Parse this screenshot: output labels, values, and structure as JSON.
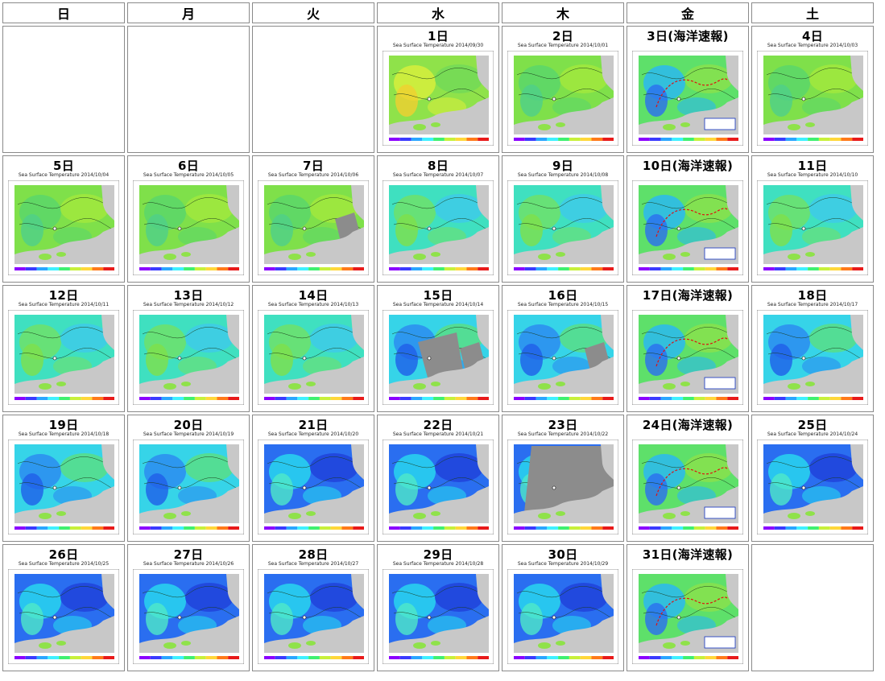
{
  "weekdays": [
    "日",
    "月",
    "火",
    "水",
    "木",
    "金",
    "土"
  ],
  "colors": {
    "land": "#c8c8c8",
    "cloud": "#8c8c8c",
    "coast_warm": "#8fe64a",
    "legend_bar": [
      "#8b00ff",
      "#3a3aff",
      "#2aa6ff",
      "#3ff0ff",
      "#3ff070",
      "#c8f03a",
      "#ffd73a",
      "#ff7a1a",
      "#e81a1a"
    ],
    "route": "#e01010"
  },
  "cells": [
    {
      "empty": true
    },
    {
      "empty": true
    },
    {
      "empty": true
    },
    {
      "day": "1日",
      "map_title": "Sea Surface Temperature 2014/09/30",
      "palette": "warm",
      "cloud": 0
    },
    {
      "day": "2日",
      "map_title": "Sea Surface Temperature 2014/10/01",
      "palette": "green",
      "cloud": 0
    },
    {
      "day": "3日(海洋速報)",
      "map_title": "",
      "palette": "quick",
      "cloud": 0
    },
    {
      "day": "4日",
      "map_title": "Sea Surface Temperature 2014/10/03",
      "palette": "green",
      "cloud": 0
    },
    {
      "day": "5日",
      "map_title": "Sea Surface Temperature 2014/10/04",
      "palette": "green",
      "cloud": 0
    },
    {
      "day": "6日",
      "map_title": "Sea Surface Temperature 2014/10/05",
      "palette": "green",
      "cloud": 0
    },
    {
      "day": "7日",
      "map_title": "Sea Surface Temperature 2014/10/06",
      "palette": "green",
      "cloud": 1
    },
    {
      "day": "8日",
      "map_title": "Sea Surface Temperature 2014/10/07",
      "palette": "cool",
      "cloud": 0
    },
    {
      "day": "9日",
      "map_title": "Sea Surface Temperature 2014/10/08",
      "palette": "cool",
      "cloud": 0
    },
    {
      "day": "10日(海洋速報)",
      "map_title": "",
      "palette": "quick",
      "cloud": 0
    },
    {
      "day": "11日",
      "map_title": "Sea Surface Temperature 2014/10/10",
      "palette": "cool",
      "cloud": 0
    },
    {
      "day": "12日",
      "map_title": "Sea Surface Temperature 2014/10/11",
      "palette": "cool",
      "cloud": 0
    },
    {
      "day": "13日",
      "map_title": "Sea Surface Temperature 2014/10/12",
      "palette": "cool",
      "cloud": 0
    },
    {
      "day": "14日",
      "map_title": "Sea Surface Temperature 2014/10/13",
      "palette": "cool",
      "cloud": 0
    },
    {
      "day": "15日",
      "map_title": "Sea Surface Temperature 2014/10/14",
      "palette": "blue",
      "cloud": 2
    },
    {
      "day": "16日",
      "map_title": "Sea Surface Temperature 2014/10/15",
      "palette": "blue",
      "cloud": 1
    },
    {
      "day": "17日(海洋速報)",
      "map_title": "",
      "palette": "quick",
      "cloud": 0
    },
    {
      "day": "18日",
      "map_title": "Sea Surface Temperature 2014/10/17",
      "palette": "blue",
      "cloud": 0
    },
    {
      "day": "19日",
      "map_title": "Sea Surface Temperature 2014/10/18",
      "palette": "blue",
      "cloud": 0
    },
    {
      "day": "20日",
      "map_title": "Sea Surface Temperature 2014/10/19",
      "palette": "blue",
      "cloud": 0
    },
    {
      "day": "21日",
      "map_title": "Sea Surface Temperature 2014/10/20",
      "palette": "deep",
      "cloud": 0
    },
    {
      "day": "22日",
      "map_title": "Sea Surface Temperature 2014/10/21",
      "palette": "deep",
      "cloud": 0
    },
    {
      "day": "23日",
      "map_title": "Sea Surface Temperature 2014/10/22",
      "palette": "deep",
      "cloud": 3
    },
    {
      "day": "24日(海洋速報)",
      "map_title": "",
      "palette": "quick",
      "cloud": 0
    },
    {
      "day": "25日",
      "map_title": "Sea Surface Temperature 2014/10/24",
      "palette": "deep",
      "cloud": 0
    },
    {
      "day": "26日",
      "map_title": "Sea Surface Temperature 2014/10/25",
      "palette": "deep",
      "cloud": 0
    },
    {
      "day": "27日",
      "map_title": "Sea Surface Temperature 2014/10/26",
      "palette": "deep",
      "cloud": 0
    },
    {
      "day": "28日",
      "map_title": "Sea Surface Temperature 2014/10/27",
      "palette": "deep",
      "cloud": 0
    },
    {
      "day": "29日",
      "map_title": "Sea Surface Temperature 2014/10/28",
      "palette": "deep",
      "cloud": 0
    },
    {
      "day": "30日",
      "map_title": "Sea Surface Temperature 2014/10/29",
      "palette": "deep",
      "cloud": 0
    },
    {
      "day": "31日(海洋速報)",
      "map_title": "",
      "palette": "quick",
      "cloud": 0
    },
    {
      "empty": true
    }
  ]
}
